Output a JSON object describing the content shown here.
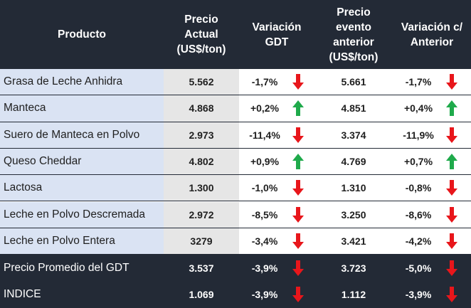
{
  "colors": {
    "header_bg": "#232a36",
    "product_bg": "#dae3f3",
    "price_bg": "#e6e6e6",
    "up": "#1faa4b",
    "down": "#e8161b"
  },
  "header": {
    "product": "Producto",
    "price": "Precio\nActual\n(US$/ton)",
    "variation": "Variación\nGDT",
    "previous": "Precio\nevento\nanterior\n(US$/ton)",
    "variation_prev": "Variación c/\nAnterior"
  },
  "rows": [
    {
      "product": "Grasa de Leche Anhidra",
      "price": "5.562",
      "variation": "-1,7%",
      "var_dir": "down",
      "previous": "5.661",
      "variation_prev": "-1,7%",
      "varp_dir": "down"
    },
    {
      "product": "Manteca",
      "price": "4.868",
      "variation": "+0,2%",
      "var_dir": "up",
      "previous": "4.851",
      "variation_prev": "+0,4%",
      "varp_dir": "up"
    },
    {
      "product": "Suero de Manteca en Polvo",
      "price": "2.973",
      "variation": "-11,4%",
      "var_dir": "down",
      "previous": "3.374",
      "variation_prev": "-11,9%",
      "varp_dir": "down"
    },
    {
      "product": "Queso Cheddar",
      "price": "4.802",
      "variation": "+0,9%",
      "var_dir": "up",
      "previous": "4.769",
      "variation_prev": "+0,7%",
      "varp_dir": "up"
    },
    {
      "product": "Lactosa",
      "price": "1.300",
      "variation": "-1,0%",
      "var_dir": "down",
      "previous": "1.310",
      "variation_prev": "-0,8%",
      "varp_dir": "down"
    },
    {
      "product": "Leche en Polvo Descremada",
      "price": "2.972",
      "variation": "-8,5%",
      "var_dir": "down",
      "previous": "3.250",
      "variation_prev": "-8,6%",
      "varp_dir": "down"
    },
    {
      "product": "Leche en Polvo Entera",
      "price": "3279",
      "variation": "-3,4%",
      "var_dir": "down",
      "previous": "3.421",
      "variation_prev": "-4,2%",
      "varp_dir": "down"
    }
  ],
  "summary": [
    {
      "product": "Precio Promedio del GDT",
      "price": "3.537",
      "variation": "-3,9%",
      "var_dir": "down",
      "previous": "3.723",
      "variation_prev": "-5,0%",
      "varp_dir": "down"
    },
    {
      "product": "INDICE",
      "price": "1.069",
      "variation": "-3,9%",
      "var_dir": "down",
      "previous": "1.112",
      "variation_prev": "-3,9%",
      "varp_dir": "down"
    }
  ]
}
